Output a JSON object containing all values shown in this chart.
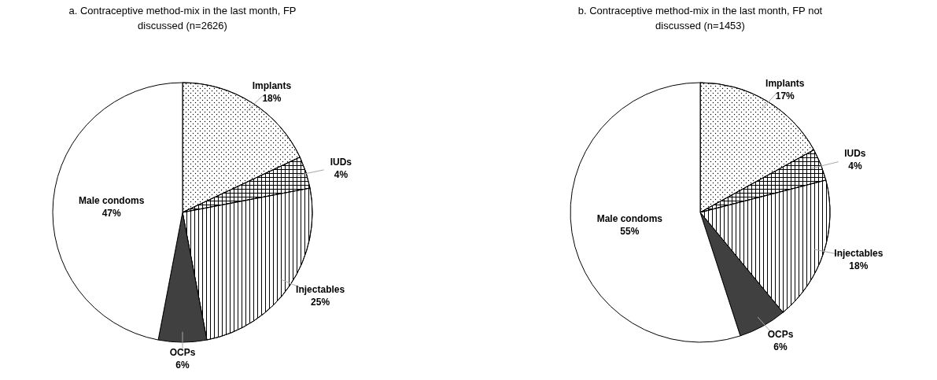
{
  "chart_data": [
    {
      "type": "pie",
      "title": "a. Contraceptive method-mix in the last month, FP discussed (n=2626)",
      "categories": [
        "Implants",
        "IUDs",
        "Injectables",
        "OCPs",
        "Male condoms"
      ],
      "values": [
        18,
        4,
        25,
        6,
        47
      ],
      "value_labels": [
        "18%",
        "4%",
        "25%",
        "6%",
        "47%"
      ],
      "colors": [
        "#ffffff",
        "#ffffff",
        "#ffffff",
        "#404040",
        "#ffffff"
      ]
    },
    {
      "type": "pie",
      "title": "b. Contraceptive method-mix in the last month, FP not discussed (n=1453)",
      "categories": [
        "Implants",
        "IUDs",
        "Injectables",
        "OCPs",
        "Male condoms"
      ],
      "values": [
        17,
        4,
        18,
        6,
        55
      ],
      "value_labels": [
        "17%",
        "4%",
        "18%",
        "6%",
        "55%"
      ],
      "colors": [
        "#ffffff",
        "#ffffff",
        "#ffffff",
        "#404040",
        "#ffffff"
      ]
    }
  ]
}
